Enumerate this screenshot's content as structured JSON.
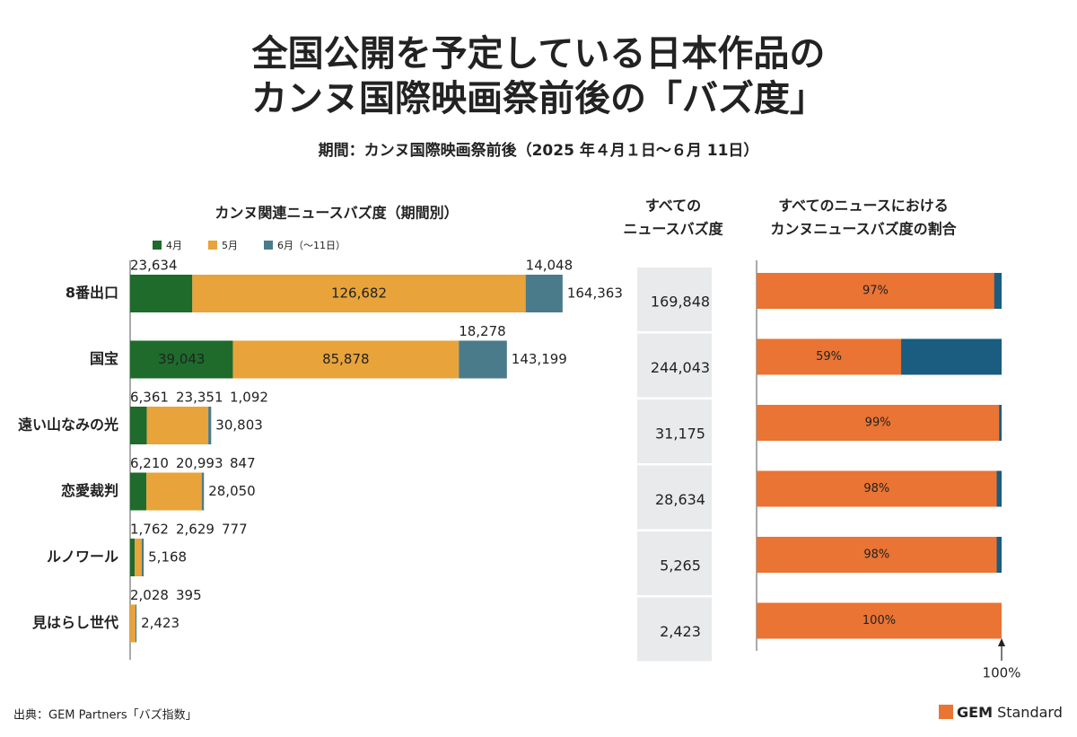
{
  "title": [
    "全国公開を予定している日本作品の",
    "カンヌ国際映画祭前後の「バズ度」"
  ],
  "subtitle": "期間：カンヌ国際映画祭前後（2025 年４月１日～６月 11日）",
  "source": "出典：GEM Partners「バズ指数」",
  "brand": {
    "bold": "GEM",
    "rest": "Standard"
  },
  "chart_data": [
    {
      "type": "stacked-bar",
      "title": "カンヌ関連ニュースバズ度（期間別）",
      "categories": [
        "8番出口",
        "国宝",
        "遠い山なみの光",
        "恋愛裁判",
        "ルノワール",
        "見はらし世代"
      ],
      "series": [
        {
          "name": "4月",
          "color": "#1e6b2b",
          "values": [
            23634,
            39043,
            6361,
            6210,
            1762,
            null
          ],
          "value_labels": [
            "23,634",
            "39,043",
            "6,361",
            "6,210",
            "1,762",
            null
          ]
        },
        {
          "name": "5月",
          "color": "#e8a33a",
          "values": [
            126682,
            85878,
            23351,
            20993,
            2629,
            2028
          ],
          "value_labels": [
            "126,682",
            "85,878",
            "23,351",
            "20,993",
            "2,629",
            "2,028"
          ]
        },
        {
          "name": "6月（～11日）",
          "color": "#4a7b8a",
          "values": [
            14048,
            18278,
            1092,
            847,
            777,
            395
          ],
          "value_labels": [
            "14,048",
            "18,278",
            "1,092",
            "847",
            "777",
            "395"
          ]
        }
      ],
      "totals": [
        164363,
        143199,
        30803,
        28050,
        5168,
        2423
      ],
      "total_labels": [
        "164,363",
        "143,199",
        "30,803",
        "28,050",
        "5,168",
        "2,423"
      ],
      "xlim": [
        0,
        190000
      ]
    },
    {
      "type": "table",
      "header": [
        "すべての",
        "ニュースバズ度"
      ],
      "rows": [
        "169,848",
        "244,043",
        "31,175",
        "28,634",
        "5,265",
        "2,423"
      ]
    },
    {
      "type": "ratio-bar",
      "header": [
        "すべてのニュースにおける",
        "カンヌニュースバズ度の割合"
      ],
      "values": [
        97,
        59,
        99,
        98,
        98,
        100
      ],
      "value_labels": [
        "97%",
        "59%",
        "99%",
        "98%",
        "98%",
        "100%"
      ],
      "color": "#e97434",
      "track_color": "#1a5d80",
      "xlim": [
        0,
        100
      ],
      "annotation": "100%"
    }
  ]
}
